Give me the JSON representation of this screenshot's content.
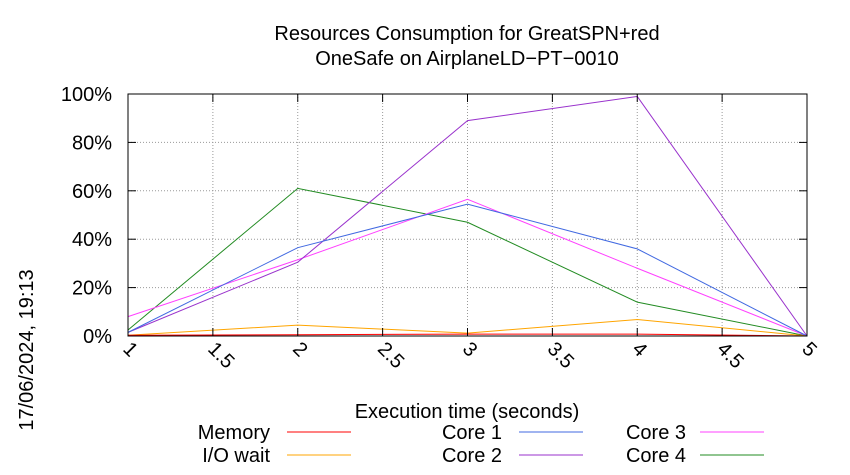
{
  "chart_data": {
    "type": "line",
    "title": "Resources Consumption for GreatSPN+red",
    "subtitle": "OneSafe on AirplaneLD−PT−0010",
    "xlabel": "Execution time (seconds)",
    "ylabel": "",
    "timestamp": "17/06/2024, 19:13",
    "xlim": [
      1,
      5
    ],
    "ylim": [
      0,
      100
    ],
    "x_ticks": [
      {
        "value": 1,
        "label": "1"
      },
      {
        "value": 1.5,
        "label": "1.5"
      },
      {
        "value": 2,
        "label": "2"
      },
      {
        "value": 2.5,
        "label": "2.5"
      },
      {
        "value": 3,
        "label": "3"
      },
      {
        "value": 3.5,
        "label": "3.5"
      },
      {
        "value": 4,
        "label": "4"
      },
      {
        "value": 4.5,
        "label": "4.5"
      },
      {
        "value": 5,
        "label": "5"
      }
    ],
    "y_ticks": [
      {
        "value": 0,
        "label": "0%"
      },
      {
        "value": 20,
        "label": "20%"
      },
      {
        "value": 40,
        "label": "40%"
      },
      {
        "value": 60,
        "label": "60%"
      },
      {
        "value": 80,
        "label": "80%"
      },
      {
        "value": 100,
        "label": "100%"
      }
    ],
    "grid": true,
    "legend_position": "bottom",
    "x": [
      1,
      2,
      3,
      4,
      5
    ],
    "series": [
      {
        "name": "Memory",
        "color": "#ff0000",
        "values": [
          0.3,
          0.5,
          0.8,
          0.8,
          0
        ]
      },
      {
        "name": "I/O wait",
        "color": "#ffa500",
        "values": [
          0.3,
          4.5,
          1.2,
          6.8,
          0
        ]
      },
      {
        "name": "Core 1",
        "color": "#4169e1",
        "values": [
          1.5,
          36.5,
          54.5,
          36,
          0
        ]
      },
      {
        "name": "Core 2",
        "color": "#9932cc",
        "values": [
          1.5,
          30.5,
          89,
          99,
          0
        ]
      },
      {
        "name": "Core 3",
        "color": "#ff40ff",
        "values": [
          8,
          31.5,
          56.5,
          28,
          0
        ]
      },
      {
        "name": "Core 4",
        "color": "#228b22",
        "values": [
          2.5,
          61,
          47,
          14,
          0
        ]
      }
    ]
  }
}
